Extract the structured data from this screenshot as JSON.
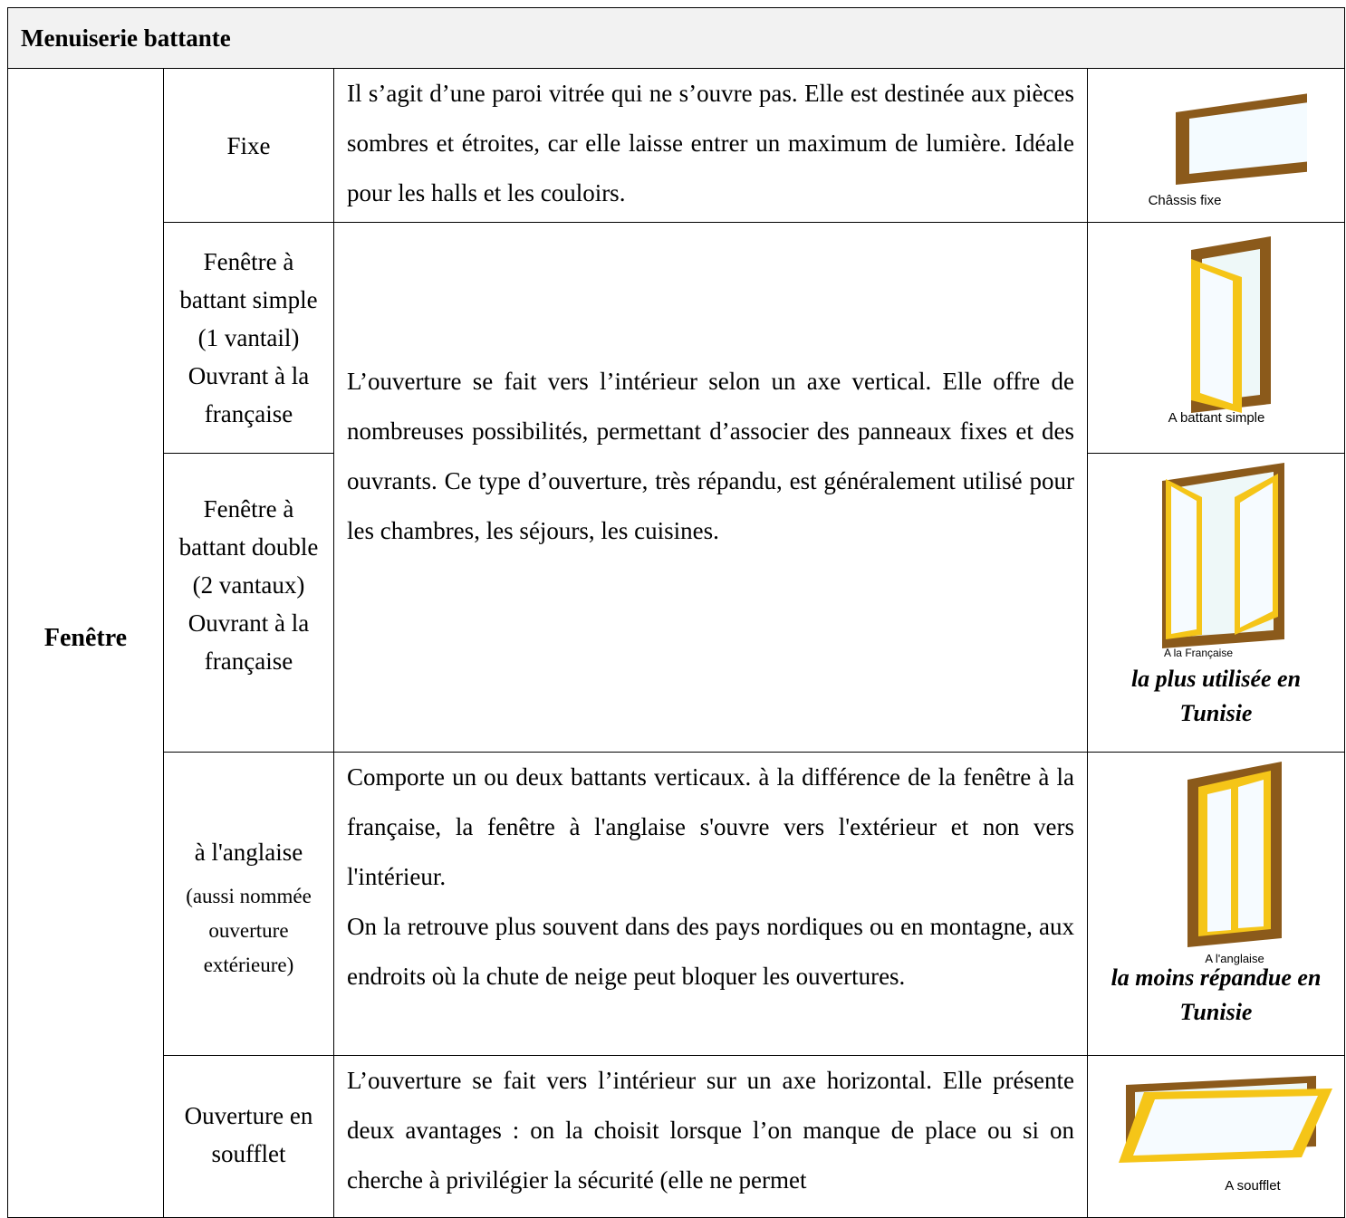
{
  "header": {
    "title": "Menuiserie battante"
  },
  "table": {
    "group": "Fenêtre",
    "rows": [
      {
        "type": [
          "Fixe"
        ],
        "paragraphs": [
          "Il s’agit d’une paroi vitrée qui ne s’ouvre pas. Elle est destinée aux pièces sombres et étroites, car elle laisse entrer un maximum de lumière. Idéale pour les halls et les couloirs."
        ],
        "image_caption": "Châssis fixe"
      },
      {
        "type": [
          "Fenêtre à battant simple (1 vantail) Ouvrant à la française"
        ],
        "paragraphs": [
          "L’ouverture se fait vers l’intérieur selon un axe vertical. Elle offre de nombreuses possibilités, permettant d’associer des panneaux fixes et des ouvrants. Ce type d’ouverture, très répandu, est généralement utilisé pour les chambres, les séjours, les cuisines."
        ],
        "image_caption": "A battant simple"
      },
      {
        "type": [
          "Fenêtre à battant double (2 vantaux) Ouvrant à la française"
        ],
        "image_caption": "A la Française",
        "note": "la plus utilisée en Tunisie"
      },
      {
        "type": [
          "à l'anglaise",
          "(aussi nommée ouverture extérieure)"
        ],
        "paragraphs": [
          "Comporte un ou deux battants verticaux. à la différence de la fenêtre à la française, la fenêtre à l'anglaise s'ouvre vers l'extérieur et non vers l'intérieur.",
          "On la retrouve plus souvent dans des pays nordiques ou en montagne, aux endroits où la chute de neige peut bloquer les ouvertures."
        ],
        "image_caption": "A l'anglaise",
        "note": "la moins répandue en Tunisie"
      },
      {
        "type": [
          "Ouverture en soufflet"
        ],
        "paragraphs": [
          "L’ouverture se fait vers l’intérieur sur un axe horizontal. Elle présente deux avantages : on la choisit lorsque l’on manque de place ou si on cherche à privilégier la sécurité (elle ne permet"
        ],
        "image_caption": "A soufflet"
      }
    ]
  }
}
